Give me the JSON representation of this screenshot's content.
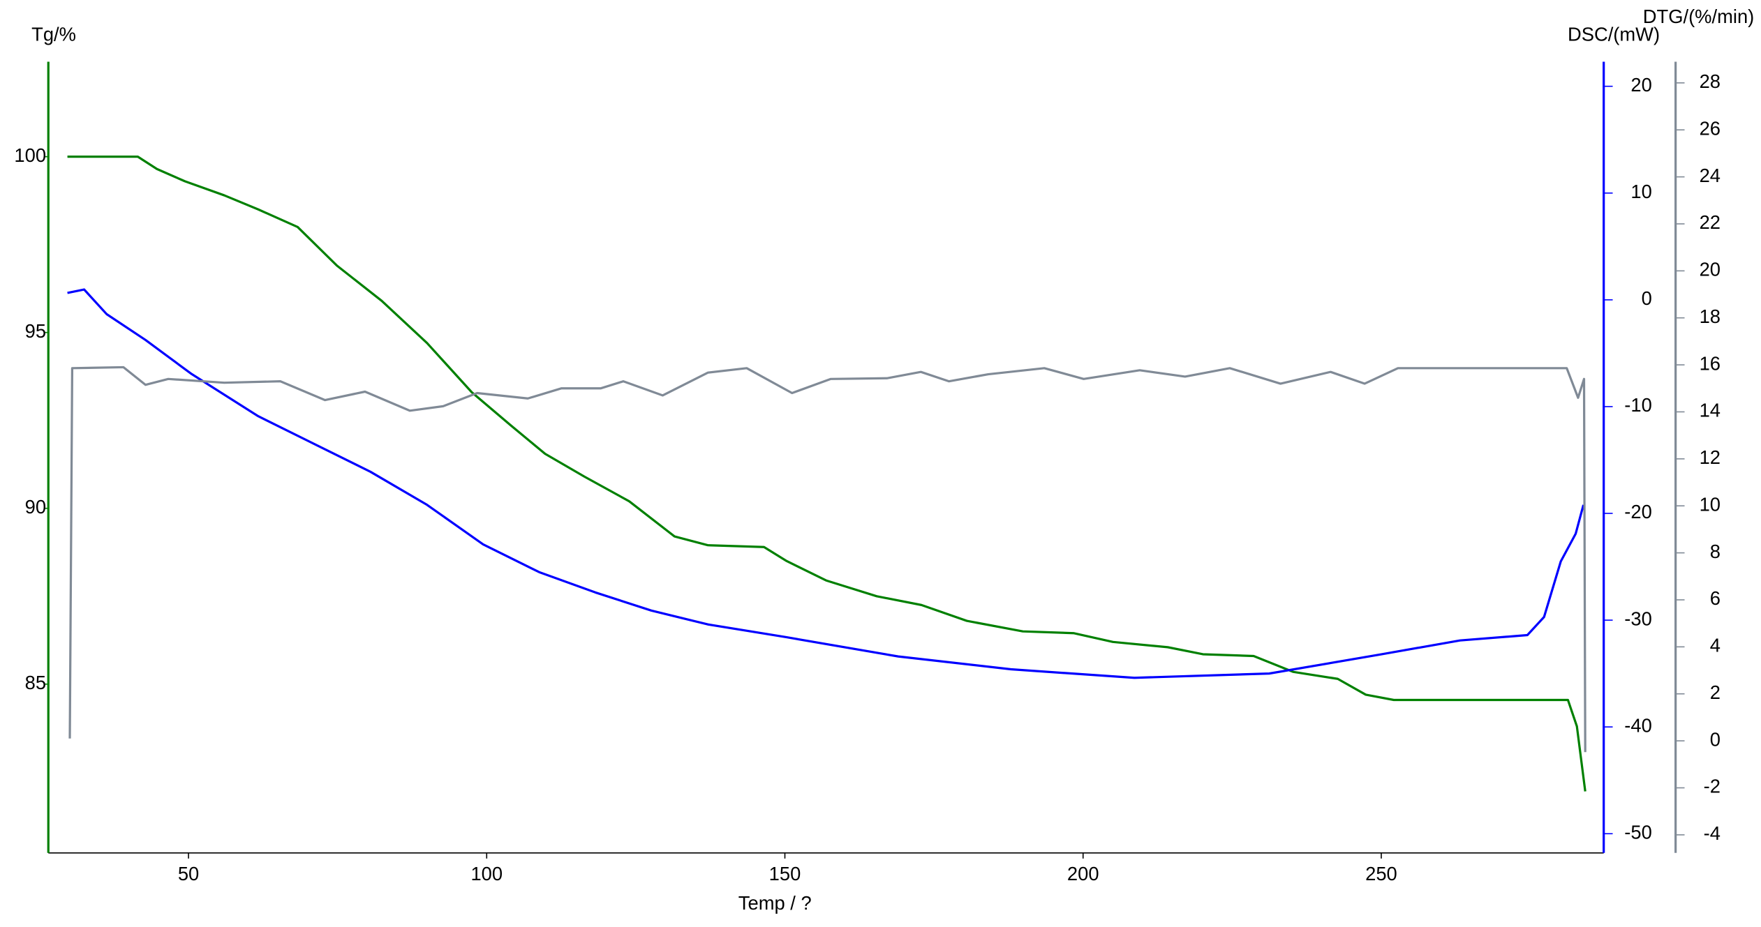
{
  "chart_data": {
    "type": "line",
    "ylabel": "Tg/%",
    "y2label": "DSC/(mW)",
    "y3label": "DTG/(%/min)",
    "xlabel": "Temp / ?",
    "xlim": [
      26.5,
      287.3
    ],
    "xticks": [
      50,
      100,
      150,
      200,
      250
    ],
    "ylim": [
      80.2,
      102.7
    ],
    "yticks": [
      85,
      90,
      95,
      100
    ],
    "y2lim": [
      -51.8,
      22.3
    ],
    "y2ticks": [
      -50,
      -40,
      -30,
      -20,
      -10,
      0,
      10,
      20
    ],
    "y3lim": [
      -4.77,
      28.9
    ],
    "y3ticks": [
      -4,
      -2,
      0,
      2,
      4,
      6,
      8,
      10,
      12,
      14,
      16,
      18,
      20,
      22,
      24,
      26,
      28
    ],
    "series": [
      {
        "color": "#008000",
        "x": [
          29.7,
          41.5,
          44.7,
          49.4,
          56.0,
          61.7,
          68.3,
          74.9,
          82.4,
          90.0,
          97.5,
          104.1,
          109.8,
          116.4,
          123.9,
          131.5,
          137.1,
          146.5,
          150.3,
          156.9,
          165.4,
          172.9,
          180.5,
          189.9,
          198.4,
          205.0,
          214.2,
          220.1,
          228.6,
          235.2,
          242.7,
          247.4,
          252.1,
          281.3,
          282.8,
          284.2
        ],
        "values": [
          100.0,
          100.0,
          99.65,
          99.3,
          98.9,
          98.5,
          98.0,
          96.9,
          95.9,
          94.7,
          93.3,
          92.35,
          91.55,
          90.9,
          90.2,
          89.2,
          88.95,
          88.9,
          88.5,
          87.95,
          87.5,
          87.25,
          86.8,
          86.5,
          86.45,
          86.2,
          86.05,
          85.85,
          85.8,
          85.35,
          85.15,
          84.7,
          84.55,
          84.55,
          83.8,
          81.95
        ]
      },
      {
        "color": "#0000ff",
        "axis": "y2",
        "x": [
          29.7,
          32.5,
          36.3,
          42.8,
          50.4,
          61.7,
          71.1,
          80.5,
          90.0,
          99.4,
          108.8,
          118.2,
          127.6,
          137.1,
          150.3,
          169.0,
          187.9,
          208.6,
          231.2,
          250.0,
          263.2,
          274.5,
          277.3,
          280.1,
          282.6,
          283.9
        ],
        "values": [
          0.65,
          0.97,
          -1.35,
          -3.76,
          -6.9,
          -10.9,
          -13.5,
          -16.1,
          -19.2,
          -22.9,
          -25.5,
          -27.4,
          -29.1,
          -30.4,
          -31.6,
          -33.4,
          -34.6,
          -35.4,
          -35.0,
          -33.2,
          -31.9,
          -31.4,
          -29.7,
          -24.5,
          -21.9,
          -19.2
        ]
      },
      {
        "color": "#808a96",
        "axis": "y3",
        "x": [
          30.1,
          30.5,
          39.1,
          42.8,
          46.6,
          56.0,
          65.4,
          72.9,
          79.6,
          87.1,
          92.7,
          98.4,
          106.9,
          112.5,
          119.1,
          122.9,
          129.5,
          137.1,
          143.6,
          151.2,
          157.7,
          167.1,
          172.8,
          177.5,
          184.1,
          193.5,
          200.1,
          209.5,
          217.1,
          224.6,
          233.1,
          241.5,
          247.2,
          252.8,
          281.1,
          283.0,
          284.0,
          284.2
        ],
        "values": [
          0.1,
          15.86,
          15.9,
          15.15,
          15.4,
          15.24,
          15.3,
          14.5,
          14.86,
          14.05,
          14.24,
          14.8,
          14.57,
          15.0,
          15.0,
          15.3,
          14.7,
          15.67,
          15.86,
          14.8,
          15.4,
          15.43,
          15.7,
          15.3,
          15.6,
          15.86,
          15.4,
          15.77,
          15.5,
          15.86,
          15.2,
          15.7,
          15.2,
          15.86,
          15.86,
          14.6,
          15.4,
          -0.48
        ]
      }
    ]
  }
}
